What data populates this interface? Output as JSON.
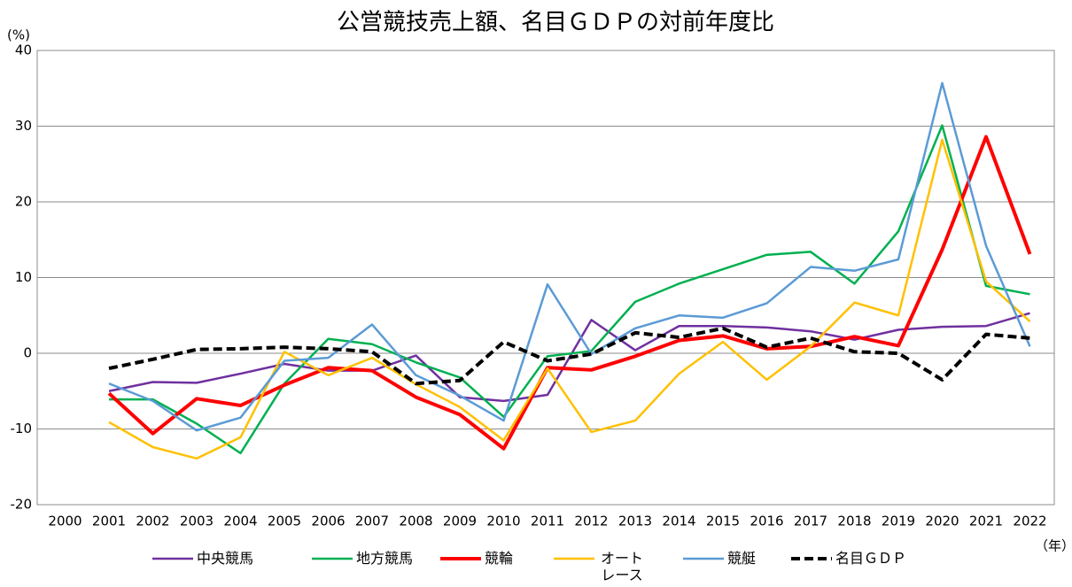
{
  "chart_data": {
    "type": "line",
    "title": "公営競技売上額、名目ＧＤＰの対前年度比",
    "y_unit": "(%)",
    "x_unit": "（年）",
    "categories": [
      "2000",
      "2001",
      "2002",
      "2003",
      "2004",
      "2005",
      "2006",
      "2007",
      "2008",
      "2009",
      "2010",
      "2011",
      "2012",
      "2013",
      "2014",
      "2015",
      "2016",
      "2017",
      "2018",
      "2019",
      "2020",
      "2021",
      "2022"
    ],
    "ylim": [
      -20,
      40
    ],
    "yticks": [
      -20,
      -10,
      0,
      10,
      20,
      30,
      40
    ],
    "grid": true,
    "series": [
      {
        "name": "中央競馬",
        "color": "#7030a0",
        "values": [
          null,
          -5.0,
          -3.8,
          -3.9,
          -2.7,
          -1.4,
          -2.3,
          -2.3,
          -0.3,
          -5.8,
          -6.3,
          -5.5,
          4.4,
          0.4,
          3.6,
          3.6,
          3.4,
          2.9,
          1.8,
          3.1,
          3.5,
          3.6,
          5.3
        ]
      },
      {
        "name": "地方競馬",
        "color": "#00b050",
        "values": [
          null,
          -6.1,
          -6.1,
          -9.3,
          -13.2,
          -4.0,
          1.9,
          1.2,
          -1.2,
          -3.2,
          -8.4,
          -0.4,
          0.3,
          6.8,
          9.2,
          11.1,
          13.0,
          13.4,
          9.2,
          16.1,
          30.1,
          8.9,
          7.8
        ]
      },
      {
        "name": "競輪",
        "color": "#ff0000",
        "width": 4,
        "values": [
          null,
          -5.3,
          -10.6,
          -6.0,
          -6.9,
          -4.2,
          -1.9,
          -2.3,
          -5.8,
          -8.1,
          -12.6,
          -1.9,
          -2.2,
          -0.4,
          1.7,
          2.3,
          0.6,
          0.9,
          2.2,
          1.0,
          13.7,
          28.6,
          13.1
        ]
      },
      {
        "name": "オートレース",
        "color": "#ffc000",
        "values": [
          null,
          -9.1,
          -12.4,
          -13.9,
          -11.1,
          0.2,
          -2.9,
          -0.6,
          -4.1,
          -7.1,
          -11.5,
          -2.0,
          -10.4,
          -8.9,
          -2.7,
          1.5,
          -3.5,
          0.9,
          6.7,
          5.0,
          28.2,
          9.5,
          4.2
        ]
      },
      {
        "name": "競艇",
        "color": "#5b9bd5",
        "values": [
          null,
          -4.0,
          -6.3,
          -10.2,
          -8.5,
          -1.0,
          -0.6,
          3.8,
          -2.9,
          -5.6,
          -8.9,
          9.1,
          -0.1,
          3.3,
          5.0,
          4.7,
          6.6,
          11.4,
          10.9,
          12.4,
          35.7,
          14.2,
          0.9
        ]
      },
      {
        "name": "名目ＧＤＰ",
        "color": "#000000",
        "width": 4,
        "linestyle": "dashed",
        "values": [
          null,
          -2.0,
          -0.8,
          0.5,
          0.6,
          0.8,
          0.6,
          0.2,
          -4.0,
          -3.6,
          1.5,
          -1.0,
          -0.1,
          2.7,
          2.1,
          3.3,
          0.8,
          2.0,
          0.2,
          0.0,
          -3.5,
          2.5,
          2.0
        ]
      }
    ]
  }
}
